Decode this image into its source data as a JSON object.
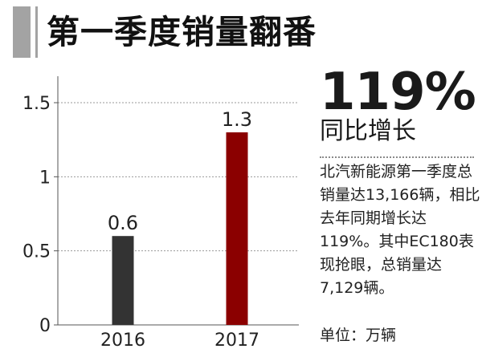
{
  "header": {
    "title": "第一季度销量翻番"
  },
  "highlight": {
    "big_number": "119%",
    "subtitle": "同比增长"
  },
  "description": "北汽新能源第一季度总销量达13,166辆，相比去年同期增长达119%。其中EC180表现抢眼，总销量达7,129辆。",
  "unit_label": "单位：万辆",
  "chart_data": {
    "type": "bar",
    "title": "",
    "xlabel": "",
    "ylabel": "",
    "categories": [
      "2016",
      "2017"
    ],
    "values": [
      0.6,
      1.3
    ],
    "data_labels": [
      "0.6",
      "1.3"
    ],
    "ylim": [
      0,
      1.5
    ],
    "yticks": [
      0,
      0.5,
      1,
      1.5
    ],
    "ytick_labels": [
      "0",
      "0.5",
      "1",
      "1.5"
    ],
    "grid": true,
    "legend": "none",
    "colors": [
      "#333333",
      "#8b0000"
    ]
  },
  "colors": {
    "accent_gray": "#a3a3a3",
    "grid": "#9a9a9a",
    "axis": "#555555"
  }
}
